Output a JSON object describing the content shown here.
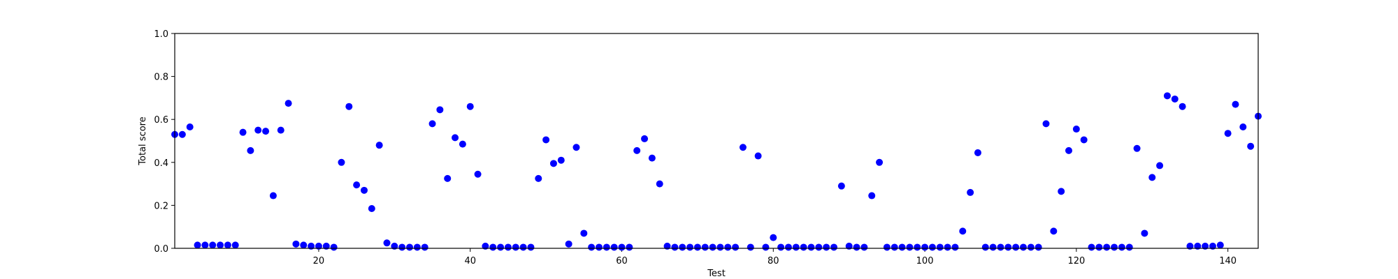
{
  "chart_data": {
    "type": "scatter",
    "title": "",
    "xlabel": "Test",
    "ylabel": "Total score",
    "xlim": [
      1,
      144
    ],
    "ylim": [
      0.0,
      1.0
    ],
    "xticks": [
      20,
      40,
      60,
      80,
      100,
      120,
      140
    ],
    "xtick_labels": [
      "20",
      "40",
      "60",
      "80",
      "100",
      "120",
      "140"
    ],
    "yticks": [
      0.0,
      0.2,
      0.4,
      0.6,
      0.8,
      1.0
    ],
    "ytick_labels": [
      "0.0",
      "0.2",
      "0.4",
      "0.6",
      "0.8",
      "1.0"
    ],
    "grid": false,
    "marker_color": "#0000ff",
    "series": [
      {
        "name": "",
        "x": [
          1,
          2,
          3,
          4,
          5,
          6,
          7,
          8,
          9,
          10,
          11,
          12,
          13,
          14,
          15,
          16,
          17,
          18,
          19,
          20,
          21,
          22,
          23,
          24,
          25,
          26,
          27,
          28,
          29,
          30,
          31,
          32,
          33,
          34,
          35,
          36,
          37,
          38,
          39,
          40,
          41,
          42,
          43,
          44,
          45,
          46,
          47,
          48,
          49,
          50,
          51,
          52,
          53,
          54,
          55,
          56,
          57,
          58,
          59,
          60,
          61,
          62,
          63,
          64,
          65,
          66,
          67,
          68,
          69,
          70,
          71,
          72,
          73,
          74,
          75,
          76,
          77,
          78,
          79,
          80,
          81,
          82,
          83,
          84,
          85,
          86,
          87,
          88,
          89,
          90,
          91,
          92,
          93,
          94,
          95,
          96,
          97,
          98,
          99,
          100,
          101,
          102,
          103,
          104,
          105,
          106,
          107,
          108,
          109,
          110,
          111,
          112,
          113,
          114,
          115,
          116,
          117,
          118,
          119,
          120,
          121,
          122,
          123,
          124,
          125,
          126,
          127,
          128,
          129,
          130,
          131,
          132,
          133,
          134,
          135,
          136,
          137,
          138,
          139,
          140,
          141,
          142,
          143,
          144
        ],
        "y": [
          0.53,
          0.53,
          0.565,
          0.015,
          0.015,
          0.015,
          0.015,
          0.015,
          0.015,
          0.54,
          0.455,
          0.55,
          0.545,
          0.245,
          0.55,
          0.675,
          0.02,
          0.015,
          0.01,
          0.01,
          0.01,
          0.005,
          0.4,
          0.66,
          0.295,
          0.27,
          0.185,
          0.48,
          0.025,
          0.01,
          0.005,
          0.005,
          0.005,
          0.005,
          0.58,
          0.645,
          0.325,
          0.515,
          0.485,
          0.66,
          0.345,
          0.01,
          0.005,
          0.005,
          0.005,
          0.005,
          0.005,
          0.005,
          0.325,
          0.505,
          0.395,
          0.41,
          0.02,
          0.47,
          0.07,
          0.005,
          0.005,
          0.005,
          0.005,
          0.005,
          0.005,
          0.455,
          0.51,
          0.42,
          0.3,
          0.01,
          0.005,
          0.005,
          0.005,
          0.005,
          0.005,
          0.005,
          0.005,
          0.005,
          0.005,
          0.47,
          0.005,
          0.43,
          0.005,
          0.05,
          0.005,
          0.005,
          0.005,
          0.005,
          0.005,
          0.005,
          0.005,
          0.005,
          0.29,
          0.01,
          0.005,
          0.005,
          0.245,
          0.4,
          0.005,
          0.005,
          0.005,
          0.005,
          0.005,
          0.005,
          0.005,
          0.005,
          0.005,
          0.005,
          0.08,
          0.26,
          0.445,
          0.005,
          0.005,
          0.005,
          0.005,
          0.005,
          0.005,
          0.005,
          0.005,
          0.58,
          0.08,
          0.265,
          0.455,
          0.555,
          0.505,
          0.005,
          0.005,
          0.005,
          0.005,
          0.005,
          0.005,
          0.465,
          0.07,
          0.33,
          0.385,
          0.71,
          0.695,
          0.66,
          0.01,
          0.01,
          0.01,
          0.01,
          0.015,
          0.535,
          0.67,
          0.565,
          0.475,
          0.615
        ]
      }
    ]
  }
}
